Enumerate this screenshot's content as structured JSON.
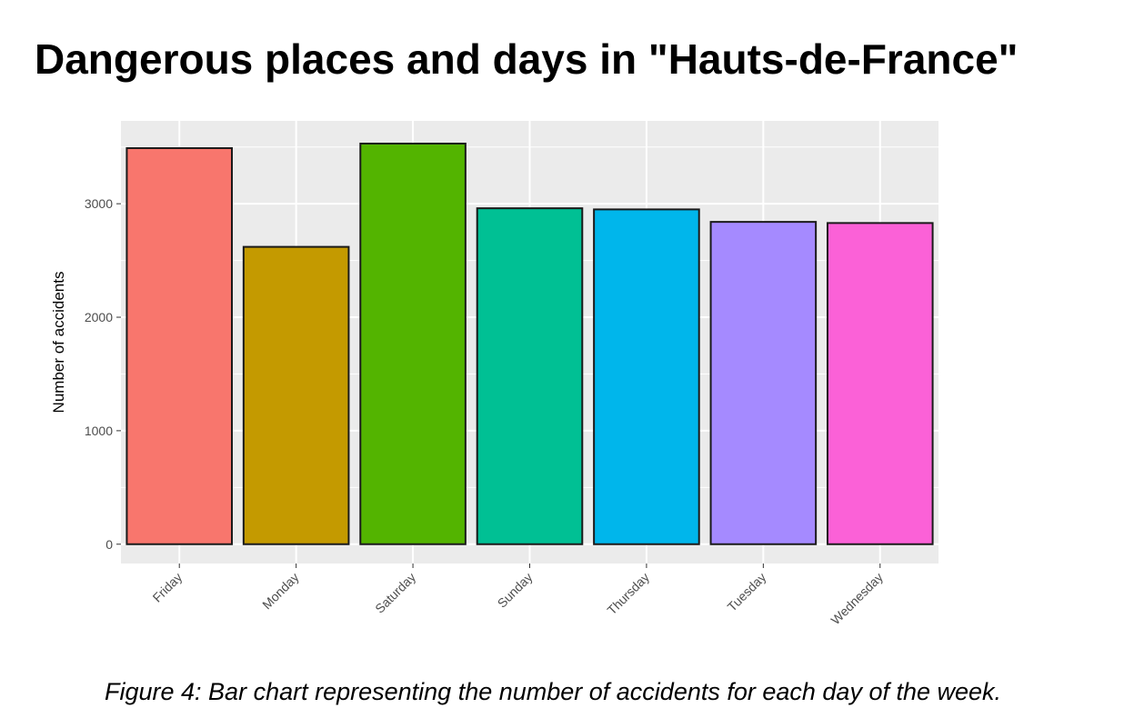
{
  "title": "Dangerous places and days in \"Hauts-de-France\"",
  "caption": "Figure 4: Bar chart representing the number of accidents for each day of the week.",
  "chart_data": {
    "type": "bar",
    "categories": [
      "Friday",
      "Monday",
      "Saturday",
      "Sunday",
      "Thursday",
      "Tuesday",
      "Wednesday"
    ],
    "values": [
      3490,
      2620,
      3530,
      2960,
      2950,
      2840,
      2830
    ],
    "colors": [
      "#F8766D",
      "#C49A00",
      "#53B400",
      "#00C094",
      "#00B6EB",
      "#A58AFF",
      "#FB61D7"
    ],
    "xlabel": "",
    "ylabel": "Number of accidents",
    "ylim": [
      -170,
      3730
    ],
    "yticks": [
      0,
      1000,
      2000,
      3000
    ],
    "grid": true,
    "panel_background": "#EBEBEB",
    "bar_outline": "#1a1a1a"
  }
}
